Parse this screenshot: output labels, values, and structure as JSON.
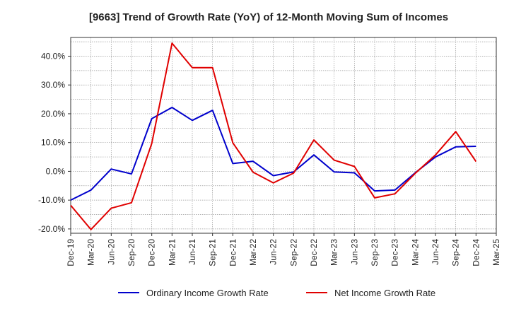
{
  "chart_data": {
    "type": "line",
    "title": "[9663]  Trend of Growth Rate (YoY) of 12-Month Moving Sum of Incomes",
    "xlabel": "",
    "ylabel": "",
    "categories": [
      "Dec-19",
      "Mar-20",
      "Jun-20",
      "Sep-20",
      "Dec-20",
      "Mar-21",
      "Jun-21",
      "Sep-21",
      "Dec-21",
      "Mar-22",
      "Jun-22",
      "Sep-22",
      "Dec-22",
      "Mar-23",
      "Jun-23",
      "Sep-23",
      "Dec-23",
      "Mar-24",
      "Jun-24",
      "Sep-24",
      "Dec-24",
      "Mar-25"
    ],
    "ylim": [
      -21.5,
      46.5
    ],
    "y_ticks": [
      -20,
      -10,
      0,
      10,
      20,
      30,
      40
    ],
    "y_tick_labels": [
      "-20.0%",
      "-10.0%",
      "0.0%",
      "10.0%",
      "20.0%",
      "30.0%",
      "40.0%"
    ],
    "grid": true,
    "legend_position": "bottom",
    "series": [
      {
        "name": "Ordinary Income Growth Rate",
        "color": "#0000cc",
        "values": [
          -10.0,
          -6.5,
          0.8,
          -0.9,
          18.3,
          22.2,
          17.7,
          21.2,
          2.7,
          3.5,
          -1.5,
          -0.2,
          5.7,
          -0.2,
          -0.5,
          -6.8,
          -6.5,
          -0.5,
          5.0,
          8.5,
          8.7,
          null
        ]
      },
      {
        "name": "Net Income Growth Rate",
        "color": "#e00000",
        "values": [
          -11.8,
          -20.2,
          -12.8,
          -10.9,
          9.7,
          44.5,
          36.0,
          36.0,
          9.9,
          -0.3,
          -4.0,
          -0.6,
          10.9,
          3.9,
          1.7,
          -9.2,
          -7.8,
          -0.7,
          5.7,
          13.8,
          3.4,
          null
        ]
      }
    ]
  }
}
